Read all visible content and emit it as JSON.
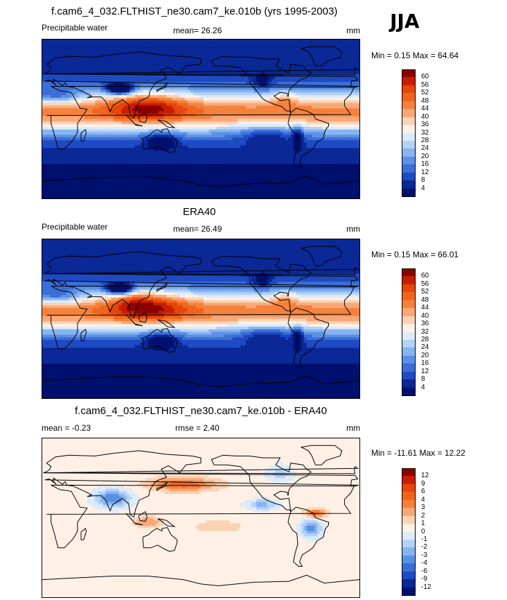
{
  "season": "JJA",
  "panels": [
    {
      "title": "f.cam6_4_032.FLTHIST_ne30.cam7_ke.010b (yrs 1995-2003)",
      "left_label": "Precipitable water",
      "center_label": "mean=  26.26",
      "units": "mm",
      "minmax": "Min =   0.15 Max =  64.64",
      "colorbar_labels": [
        "60",
        "56",
        "52",
        "48",
        "44",
        "40",
        "36",
        "32",
        "28",
        "24",
        "20",
        "16",
        "12",
        "8",
        "4"
      ],
      "colors": [
        "#8b0000",
        "#c81e00",
        "#e6460a",
        "#f0641e",
        "#f5823c",
        "#f8a878",
        "#fcd2b4",
        "#fff0e6",
        "#dcebfa",
        "#b4d2f5",
        "#87b4f0",
        "#5a91e6",
        "#3c6ed7",
        "#1e4bc3",
        "#0a2896",
        "#00106e"
      ],
      "field": "model"
    },
    {
      "title": "ERA40",
      "left_label": "Precipitable water",
      "center_label": "mean=  26.49",
      "units": "mm",
      "minmax": "Min =   0.15 Max =  66.01",
      "colorbar_labels": [
        "60",
        "56",
        "52",
        "48",
        "44",
        "40",
        "36",
        "32",
        "28",
        "24",
        "20",
        "16",
        "12",
        "8",
        "4"
      ],
      "colors": [
        "#8b0000",
        "#c81e00",
        "#e6460a",
        "#f0641e",
        "#f5823c",
        "#f8a878",
        "#fcd2b4",
        "#fff0e6",
        "#dcebfa",
        "#b4d2f5",
        "#87b4f0",
        "#5a91e6",
        "#3c6ed7",
        "#1e4bc3",
        "#0a2896",
        "#00106e"
      ],
      "field": "obs"
    },
    {
      "title": "f.cam6_4_032.FLTHIST_ne30.cam7_ke.010b - ERA40",
      "left_label": "mean =  -0.23",
      "center_label": "rmse =   2.40",
      "units": "mm",
      "minmax": "Min = -11.61 Max =  12.22",
      "colorbar_labels": [
        "12",
        "9",
        "6",
        "4",
        "3",
        "2",
        "1",
        "0",
        "-1",
        "-2",
        "-3",
        "-4",
        "-6",
        "-9",
        "-12"
      ],
      "colors": [
        "#8b0000",
        "#c81e00",
        "#e6460a",
        "#f0641e",
        "#f5823c",
        "#f8a878",
        "#fcd2b4",
        "#fff0e6",
        "#dcebfa",
        "#b4d2f5",
        "#87b4f0",
        "#5a91e6",
        "#3c6ed7",
        "#1e4bc3",
        "#0a2896",
        "#00106e"
      ],
      "field": "diff"
    }
  ]
}
